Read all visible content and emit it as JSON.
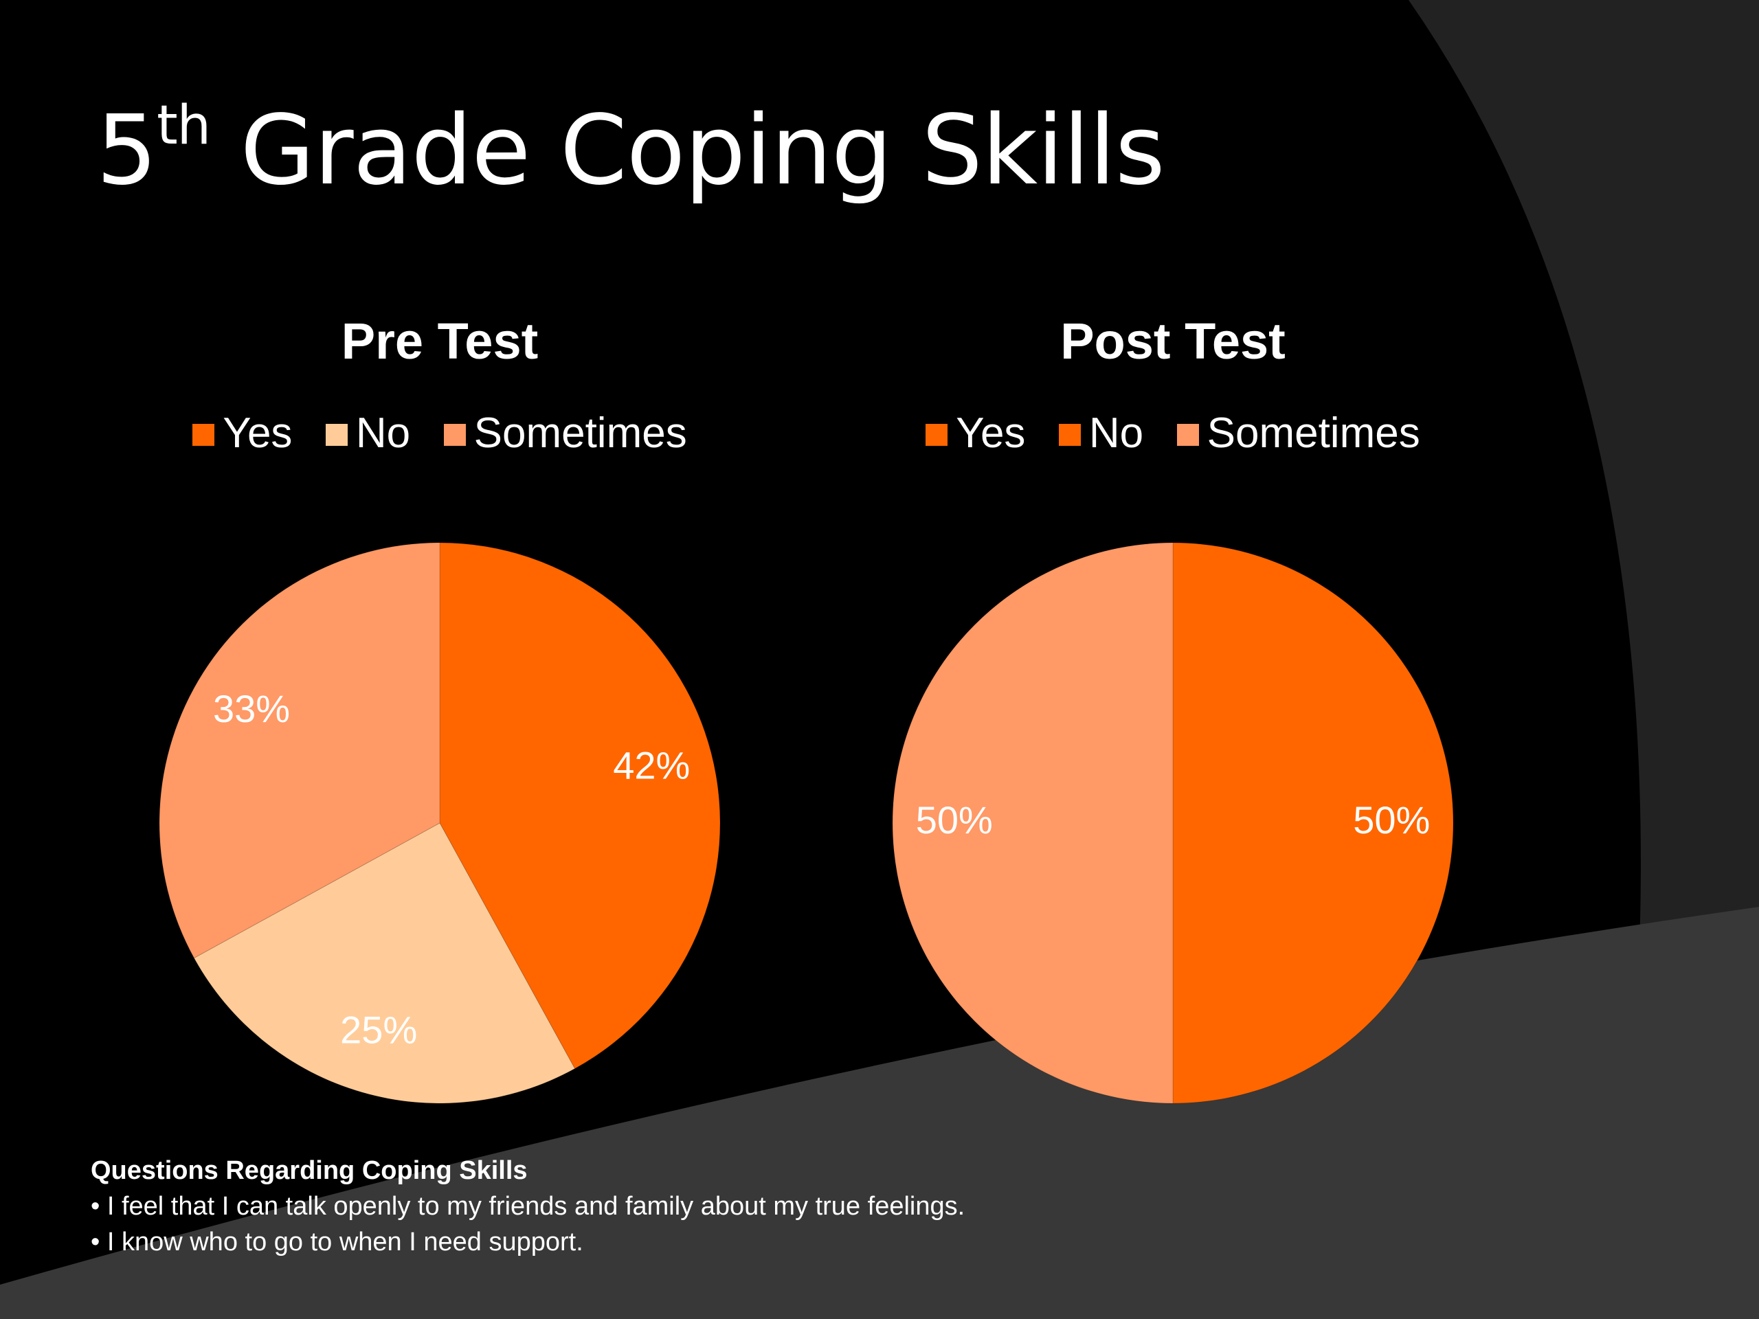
{
  "slide": {
    "title_main": "5",
    "title_sup": "th",
    "title_rest": " Grade Coping Skills"
  },
  "colors": {
    "background": "#000000",
    "arc_dark": "#1f1f1f",
    "arc_light": "#383838",
    "text": "#ffffff"
  },
  "chart_data": [
    {
      "type": "pie",
      "title": "Pre Test",
      "categories": [
        "Yes",
        "No",
        "Sometimes"
      ],
      "values": [
        42,
        25,
        33
      ],
      "data_labels": [
        "42%",
        "25%",
        "33%"
      ],
      "colors": [
        "#FF6600",
        "#FFCC99",
        "#FF9966"
      ],
      "legend": "top",
      "start_angle": "12 o'clock",
      "direction": "clockwise"
    },
    {
      "type": "pie",
      "title": "Post Test",
      "categories": [
        "Yes",
        "No",
        "Sometimes"
      ],
      "values": [
        50,
        0,
        50
      ],
      "data_labels": [
        "50%",
        "",
        "50%"
      ],
      "colors": [
        "#FF6600",
        "#FF6600",
        "#FF9966"
      ],
      "legend": "top",
      "start_angle": "12 o'clock",
      "direction": "clockwise"
    }
  ],
  "footer": {
    "heading": "Questions Regarding Coping Skills",
    "items": [
      "• I feel that I can talk openly to my friends and family about my true feelings.",
      "• I know who to go to when I need support."
    ]
  }
}
